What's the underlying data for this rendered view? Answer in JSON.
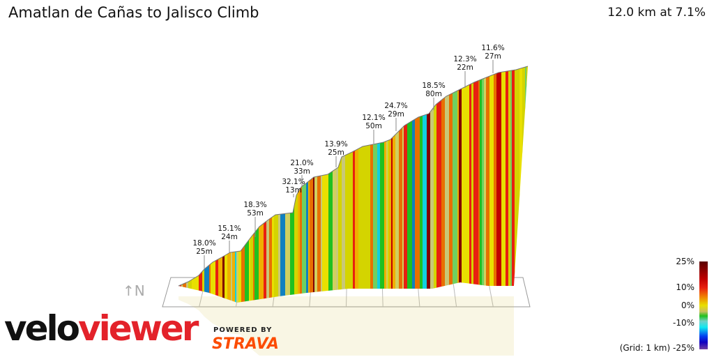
{
  "header": {
    "title": "Amatlan de Cañas to Jalisco Climb",
    "summary": "12.0 km at 7.1%"
  },
  "chart_data": {
    "type": "area",
    "title": "Amatlan de Cañas to Jalisco Climb",
    "distance_km": 12.0,
    "avg_grade_pct": 7.1,
    "grid": "1 km",
    "annotations": [
      {
        "grade": "18.0%",
        "length": "25m"
      },
      {
        "grade": "15.1%",
        "length": "24m"
      },
      {
        "grade": "18.3%",
        "length": "53m"
      },
      {
        "grade": "32.1%",
        "length": "13m"
      },
      {
        "grade": "21.0%",
        "length": "33m"
      },
      {
        "grade": "13.9%",
        "length": "25m"
      },
      {
        "grade": "12.1%",
        "length": "50m"
      },
      {
        "grade": "24.7%",
        "length": "29m"
      },
      {
        "grade": "18.5%",
        "length": "80m"
      },
      {
        "grade": "12.3%",
        "length": "22m"
      },
      {
        "grade": "11.6%",
        "length": "27m"
      }
    ],
    "legend": {
      "position": "bottom-right",
      "ticks": [
        "25%",
        "10%",
        "0%",
        "-10%"
      ],
      "bottom_label": "(Grid: 1 km) -25%",
      "colors": [
        "#5a0000",
        "#c00000",
        "#e82010",
        "#f08000",
        "#e8e000",
        "#c8c060",
        "#20c020",
        "#70d0c8",
        "#10e8f0",
        "#0060f0",
        "#0000d0",
        "#7040a0"
      ]
    }
  },
  "branding": {
    "logo_velo": "velo",
    "logo_viewer": "viewer",
    "powered_by": "POWERED BY",
    "strava": "STRAVA",
    "compass": "↑N"
  }
}
